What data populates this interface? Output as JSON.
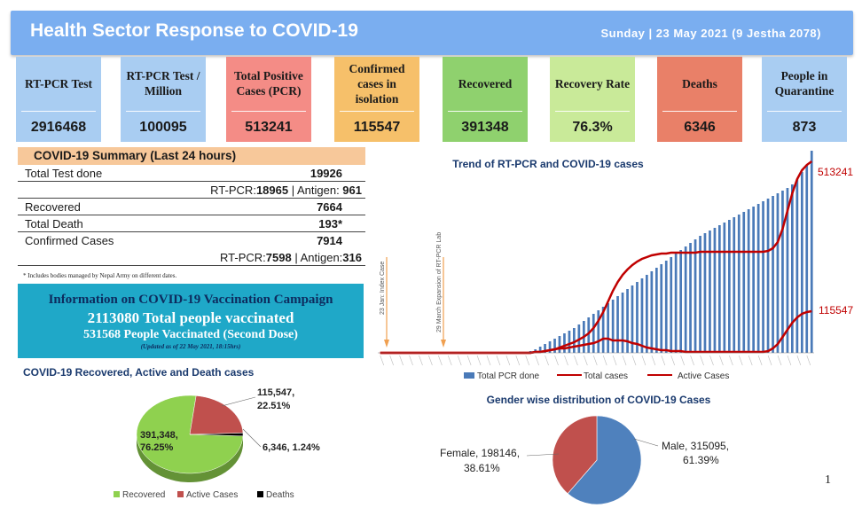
{
  "header": {
    "title": "Health Sector Response to COVID-19",
    "date": "Sunday | 23 May 2021 (9 Jestha 2078)"
  },
  "colors": {
    "header": "#7aaef0",
    "card_blue": "#a9cdf2",
    "card_red": "#f48c86",
    "card_orange": "#f6c06a",
    "card_green": "#8fd16e",
    "card_lightgreen": "#c9ea99",
    "card_deaths": "#e98068",
    "bar_blue": "#4a7ab8",
    "line_red": "#c00000"
  },
  "cards": [
    {
      "label": "RT-PCR Test",
      "value": "2916468",
      "color": "#a9cdf2"
    },
    {
      "label": "RT-PCR Test / Million",
      "value": "100095",
      "color": "#a9cdf2"
    },
    {
      "label": "Total Positive Cases (PCR)",
      "value": "513241",
      "color": "#f48c86"
    },
    {
      "label": "Confirmed cases in isolation",
      "value": "115547",
      "color": "#f6c06a"
    },
    {
      "label": "Recovered",
      "value": "391348",
      "color": "#8fd16e"
    },
    {
      "label": "Recovery Rate",
      "value": "76.3%",
      "color": "#c9ea99"
    },
    {
      "label": "Deaths",
      "value": "6346",
      "color": "#e98068"
    },
    {
      "label": "People in Quarantine",
      "value": "873",
      "color": "#a9cdf2"
    }
  ],
  "summary": {
    "title": "COVID-19 Summary (Last 24 hours)",
    "total_test_label": "Total Test done",
    "total_test_value": "19926",
    "test_breakdown_pre": "RT-PCR:",
    "test_rtpcr": "18965",
    "test_breakdown_mid": " | Antigen: ",
    "test_antigen": "961",
    "recovered_label": "Recovered",
    "recovered_value": "7664",
    "death_label": "Total Death",
    "death_value": "193*",
    "confirmed_label": "Confirmed Cases",
    "confirmed_value": "7914",
    "conf_breakdown_pre": "RT-PCR:",
    "conf_rtpcr": "7598",
    "conf_breakdown_mid": " | Antigen:",
    "conf_antigen": "316",
    "footnote": "* Includes bodies managed by Nepal Army on different dates."
  },
  "vaccination": {
    "title": "Information on COVID-19 Vaccination Campaign",
    "total": "2113080 Total people vaccinated",
    "second_dose": "531568 People Vaccinated (Second Dose)",
    "updated": "(Updated as of 22 May 2021, 18:15hrs)"
  },
  "pie_section_title": "COVID-19 Recovered, Active and Death cases",
  "gender_section_title": "Gender wise distribution of COVID-19 Cases",
  "page_number": "1",
  "chart_data": [
    {
      "type": "bar",
      "title": "Trend of RT-PCR and COVID-19 cases",
      "annotations": [
        "23 Jan: Index Case",
        "29 March Expansion of RT-PCR Lab"
      ],
      "end_labels": {
        "total": "513241",
        "active": "115547"
      },
      "legend": [
        "Total PCR done",
        "Total  cases",
        "Active Cases"
      ],
      "legend_position": "bottom",
      "series": [
        {
          "name": "Total PCR done",
          "type": "bar",
          "values": [
            0,
            0,
            0,
            0,
            0,
            0,
            0,
            0,
            0,
            0,
            0,
            0,
            0,
            0,
            0,
            0,
            0,
            0,
            0,
            0,
            0,
            0,
            0,
            0,
            0,
            0,
            0,
            0,
            0,
            0,
            0,
            2,
            4,
            7,
            10,
            13,
            16,
            19,
            22,
            25,
            28,
            32,
            36,
            40,
            44,
            48,
            52,
            56,
            60,
            64,
            68,
            72,
            76,
            80,
            84,
            88,
            92,
            96,
            100,
            104,
            108,
            112,
            116,
            120,
            124,
            128,
            132,
            135,
            138,
            141,
            144,
            147,
            150,
            153,
            156,
            159,
            162,
            165,
            168,
            171,
            174,
            177,
            180,
            183,
            186,
            190,
            196,
            204,
            212,
            230
          ]
        },
        {
          "name": "Total  cases",
          "type": "line",
          "values": [
            0,
            0,
            0,
            0,
            0,
            0,
            0,
            0,
            0,
            0,
            0,
            0,
            0,
            0,
            0,
            0,
            0,
            0,
            0,
            0,
            0,
            0,
            0,
            0,
            0,
            0,
            0,
            0,
            0,
            0,
            0,
            0,
            1,
            1,
            2,
            3,
            4,
            6,
            8,
            10,
            12,
            15,
            18,
            22,
            28,
            36,
            46,
            58,
            70,
            80,
            88,
            94,
            99,
            103,
            106,
            108,
            110,
            111,
            112,
            112,
            113,
            113,
            113,
            113,
            113,
            113,
            114,
            114,
            114,
            114,
            114,
            114,
            114,
            114,
            114,
            114,
            114,
            114,
            114,
            114,
            115,
            118,
            125,
            140,
            160,
            180,
            196,
            206,
            212,
            216
          ]
        },
        {
          "name": "Active Cases",
          "type": "line",
          "values": [
            0,
            0,
            0,
            0,
            0,
            0,
            0,
            0,
            0,
            0,
            0,
            0,
            0,
            0,
            0,
            0,
            0,
            0,
            0,
            0,
            0,
            0,
            0,
            0,
            0,
            0,
            0,
            0,
            0,
            0,
            0,
            0,
            1,
            1,
            2,
            3,
            4,
            5,
            5,
            6,
            7,
            8,
            9,
            10,
            11,
            13,
            16,
            16,
            14,
            14,
            14,
            13,
            11,
            10,
            8,
            6,
            5,
            4,
            3,
            3,
            2,
            2,
            2,
            1,
            1,
            1,
            1,
            1,
            1,
            1,
            1,
            1,
            1,
            1,
            1,
            1,
            1,
            1,
            1,
            1,
            2,
            5,
            10,
            18,
            26,
            34,
            40,
            44,
            46,
            47
          ]
        }
      ]
    },
    {
      "type": "pie",
      "title": "COVID-19 Recovered, Active and Death cases",
      "slices": [
        {
          "name": "Recovered",
          "value": 391348,
          "percent": 76.25,
          "label": "391,348,\n76.25%",
          "color": "#8fd14f"
        },
        {
          "name": "Active Cases",
          "value": 115547,
          "percent": 22.51,
          "label": "115,547,\n22.51%",
          "color": "#c0504d"
        },
        {
          "name": "Deaths",
          "value": 6346,
          "percent": 1.24,
          "label": "6,346, 1.24%",
          "color": "#000000"
        }
      ],
      "legend": [
        "Recovered",
        "Active Cases",
        "Deaths"
      ],
      "legend_position": "bottom"
    },
    {
      "type": "pie",
      "title": "Gender wise distribution of COVID-19 Cases",
      "slices": [
        {
          "name": "Male",
          "value": 315095,
          "percent": 61.39,
          "label": "Male, 315095,\n61.39%",
          "color": "#4f81bd"
        },
        {
          "name": "Female",
          "value": 198146,
          "percent": 38.61,
          "label": "Female, 198146,\n38.61%",
          "color": "#c0504d"
        }
      ]
    }
  ]
}
